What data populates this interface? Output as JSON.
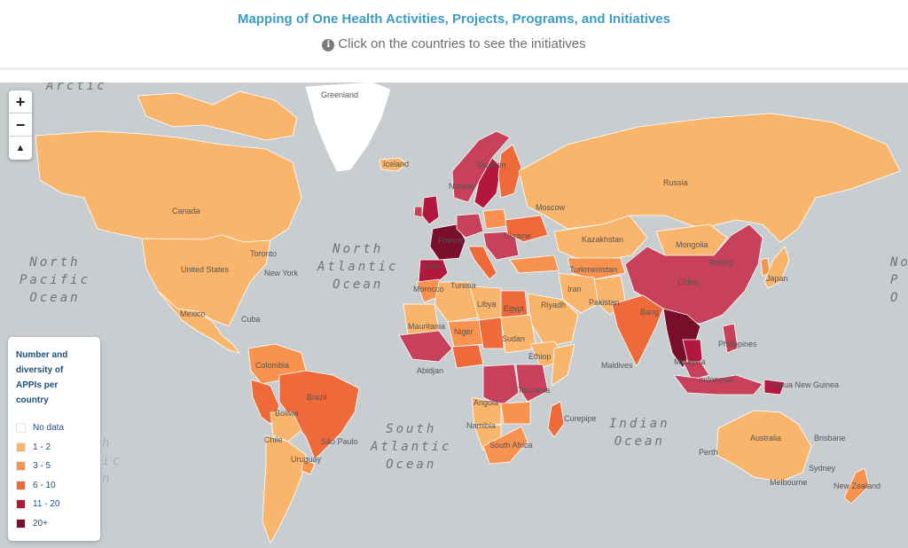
{
  "header": {
    "title": "Mapping of One Health Activities, Projects, Programs, and Initiatives",
    "subtitle": "Click on the countries to see the initiatives",
    "info_icon_glyph": "i"
  },
  "zoom": {
    "zoom_in": "+",
    "zoom_out": "−",
    "reset_north": "▲"
  },
  "legend": {
    "title_lines": [
      "Number and",
      "diversity of",
      "APPIs per",
      "country"
    ],
    "items": [
      {
        "label": "No data",
        "color": "#ffffff"
      },
      {
        "label": "1 - 2",
        "color": "#f9b56b"
      },
      {
        "label": "3 - 5",
        "color": "#f7934f"
      },
      {
        "label": "6 - 10",
        "color": "#ef6a3a"
      },
      {
        "label": "11 - 20",
        "color": "#b3173e"
      },
      {
        "label": "20+",
        "color": "#7a0f2c"
      }
    ]
  },
  "oceans": {
    "north_pacific": [
      "North",
      "Pacific",
      "Ocean"
    ],
    "north_atlantic": [
      "North",
      "Atlantic",
      "Ocean"
    ],
    "south_atlantic": [
      "South",
      "Atlantic",
      "Ocean"
    ],
    "indian": [
      "Indian",
      "Ocean"
    ],
    "south_pacific": [
      "South",
      "Pacific",
      "Ocean"
    ],
    "arctic": "Arctic",
    "right_edge": [
      "No",
      "P",
      "O"
    ]
  },
  "places": {
    "greenland": "Greenland",
    "iceland": "Iceland",
    "canada": "Canada",
    "united_states": "United States",
    "new_york": "New York",
    "toronto": "Toronto",
    "mexico": "Mexico",
    "cuba": "Cuba",
    "colombia": "Colombia",
    "brazil": "Brazil",
    "bolivia": "Bolivia",
    "chile": "Chile",
    "sao_paulo": "São Paulo",
    "uruguay": "Uruguay",
    "norway": "Norway",
    "sweden": "Sweden",
    "france": "France",
    "spain": "Spain",
    "ukraine": "Ukraine",
    "moscow": "Moscow",
    "russia": "Russia",
    "kazakhstan": "Kazakhstan",
    "turkmenistan": "Turkmenistan",
    "mongolia": "Mongolia",
    "beijing": "Beijing",
    "china": "China",
    "japan": "Japan",
    "iran": "Iran",
    "riyadh": "Riyadh",
    "pakistan": "Pakistan",
    "india": "India",
    "bangladesh": "Bang",
    "libya": "Libya",
    "egypt": "Egypt",
    "morocco": "Morocco",
    "tunisia": "Tunisia",
    "mauritania": "Mauritania",
    "niger": "Niger",
    "sudan": "Sudan",
    "ethiopia": "Ethiop",
    "abidjan": "Abidjan",
    "angola": "Angola",
    "namibia": "Namibia",
    "tanzania": "Tanzania",
    "south_africa": "South Africa",
    "curepipe": "Curepipe",
    "maldives": "Maldives",
    "philippines": "Philippines",
    "malaysia": "Malaysia",
    "indonesia": "Indonesia",
    "papua_new_guinea": "Papua New Guinea",
    "australia": "Australia",
    "perth": "Perth",
    "brisbane": "Brisbane",
    "sydney": "Sydney",
    "melbourne": "Melbourne",
    "new_zealand": "New Zealand"
  },
  "colors": {
    "ocean": "#c8cdd0",
    "no_data": "#ffffff",
    "c1": "#f9b56b",
    "c2": "#f7934f",
    "c3": "#ef6a3a",
    "c4": "#b3173e",
    "c5": "#c8415a",
    "c6": "#7a0f2c"
  }
}
